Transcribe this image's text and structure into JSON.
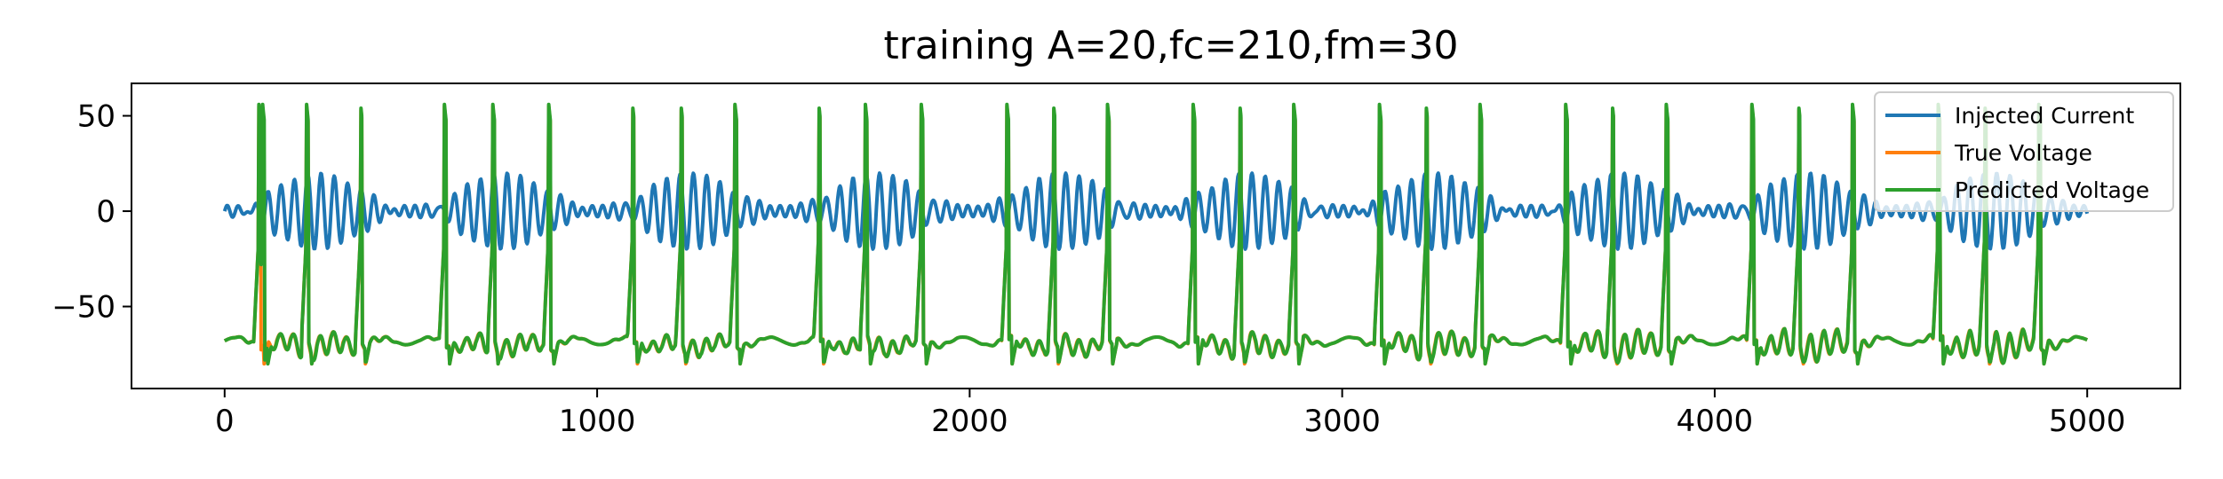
{
  "chart_data": {
    "type": "line",
    "title": "training A=20,fc=210,fm=30",
    "xlabel": "",
    "ylabel": "",
    "xlim": [
      -250,
      5250
    ],
    "ylim": [
      -93,
      67
    ],
    "xticks": [
      0,
      1000,
      2000,
      3000,
      4000,
      5000
    ],
    "xtick_labels": [
      "0",
      "1000",
      "2000",
      "3000",
      "4000",
      "5000"
    ],
    "yticks": [
      50,
      0,
      -50
    ],
    "ytick_labels": [
      "50",
      "0",
      "−50"
    ],
    "grid": false,
    "legend_position": "top-right",
    "series": [
      {
        "name": "Injected Current",
        "color": "#1f77b4",
        "generator": {
          "amplitude": 20,
          "carrier_freq": 210,
          "mod_freq": 30,
          "x_start": 0,
          "x_end": 5000
        }
      },
      {
        "name": "True Voltage",
        "color": "#ff7f0e",
        "spike_x": [
          92,
          220,
          365,
          590,
          720,
          870,
          1095,
          1225,
          1370,
          1595,
          1720,
          1870,
          2100,
          2225,
          2370,
          2600,
          2725,
          2870,
          3100,
          3225,
          3370,
          3600,
          3725,
          3870,
          4100,
          4225,
          4370,
          4600,
          4725,
          4870
        ],
        "resting": -68,
        "spike_peak": 55
      },
      {
        "name": "Predicted Voltage",
        "color": "#2ca02c",
        "spike_x": [
          92,
          102,
          220,
          365,
          590,
          720,
          870,
          1095,
          1225,
          1370,
          1595,
          1720,
          1870,
          2100,
          2225,
          2370,
          2600,
          2725,
          2870,
          3100,
          3225,
          3370,
          3600,
          3725,
          3870,
          4100,
          4225,
          4370,
          4600,
          4725,
          4870
        ],
        "resting": -68,
        "spike_peak": 56
      }
    ]
  }
}
